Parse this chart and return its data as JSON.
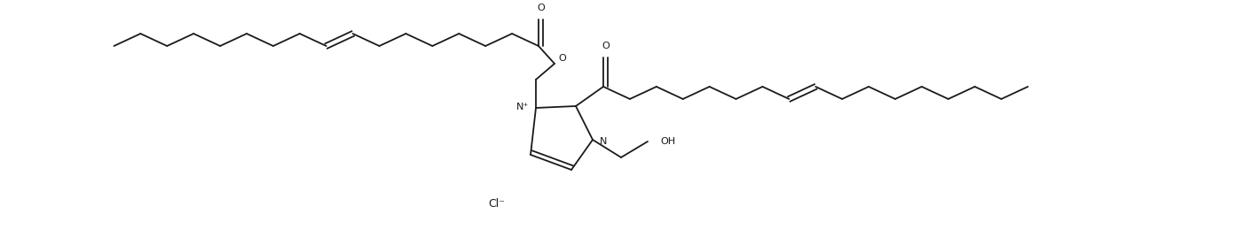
{
  "bg_color": "#ffffff",
  "line_color": "#1a1a1a",
  "lw": 1.3,
  "figsize": [
    14.01,
    2.68
  ],
  "dpi": 100,
  "Cl_text": "Cl⁻",
  "Nplus_text": "N⁺",
  "N_text": "N",
  "O_text": "O",
  "OH_text": "OH"
}
